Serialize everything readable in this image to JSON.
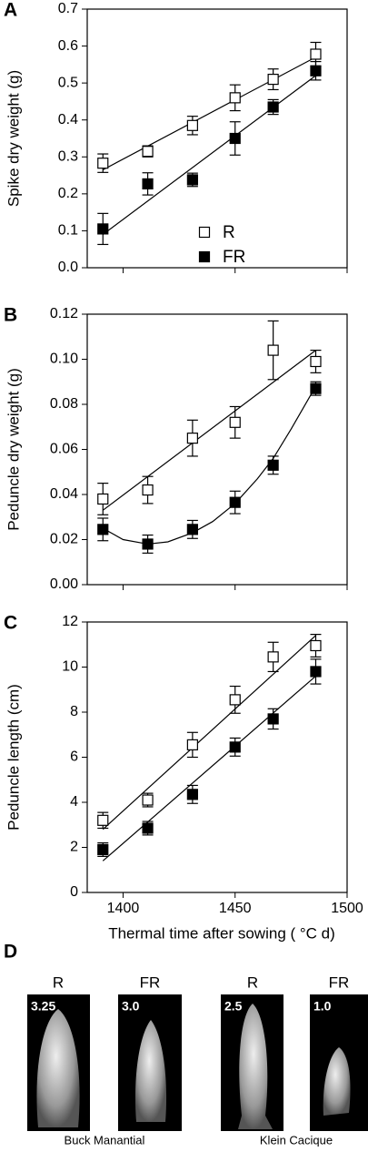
{
  "chart_data": [
    {
      "type": "scatter",
      "panel_label": "A",
      "ylabel": "Spike dry weight (g)",
      "xlim": [
        1384,
        1500
      ],
      "xticks": [
        1400,
        1450,
        1500
      ],
      "show_xtick_labels": false,
      "ylim": [
        0,
        0.7
      ],
      "yticks": [
        {
          "value": 0,
          "label": "0.0"
        },
        0.1,
        0.2,
        0.3,
        0.4,
        0.5,
        0.6,
        0.7
      ],
      "legend": "lower right",
      "x": [
        1391,
        1411,
        1431,
        1450,
        1467,
        1486
      ],
      "series": [
        {
          "name": "R",
          "marker": "open",
          "color": "#000000",
          "values": [
            0.283,
            0.315,
            0.385,
            0.46,
            0.51,
            0.578
          ],
          "errors": [
            0.025,
            0.015,
            0.025,
            0.035,
            0.028,
            0.032
          ],
          "fit": {
            "x": [
              1391,
              1486
            ],
            "values": [
              0.265,
              0.57
            ]
          }
        },
        {
          "name": "FR",
          "marker": "filled",
          "color": "#000000",
          "values": [
            0.105,
            0.227,
            0.238,
            0.35,
            0.435,
            0.533
          ],
          "errors": [
            0.042,
            0.03,
            0.018,
            0.045,
            0.02,
            0.025
          ],
          "fit": {
            "x": [
              1391,
              1486
            ],
            "values": [
              0.09,
              0.52
            ]
          }
        }
      ]
    },
    {
      "type": "scatter",
      "panel_label": "B",
      "ylabel": "Peduncle dry weight (g)",
      "xlim": [
        1384,
        1500
      ],
      "xticks": [
        1400,
        1450,
        1500
      ],
      "show_xtick_labels": false,
      "ylim": [
        0,
        0.12
      ],
      "yticks": [
        {
          "value": 0,
          "label": "0.00"
        },
        {
          "value": 0.02,
          "label": "0.02"
        },
        {
          "value": 0.04,
          "label": "0.04"
        },
        {
          "value": 0.06,
          "label": "0.06"
        },
        {
          "value": 0.08,
          "label": "0.08"
        },
        {
          "value": 0.1,
          "label": "0.10"
        },
        {
          "value": 0.12,
          "label": "0.12"
        }
      ],
      "x": [
        1391,
        1411,
        1431,
        1450,
        1467,
        1486
      ],
      "series": [
        {
          "marker": "open",
          "color": "#000000",
          "values": [
            0.038,
            0.042,
            0.065,
            0.072,
            0.104,
            0.099
          ],
          "errors": [
            0.007,
            0.006,
            0.008,
            0.007,
            0.013,
            0.005
          ],
          "fit": {
            "x": [
              1391,
              1486
            ],
            "values": [
              0.033,
              0.104
            ]
          }
        },
        {
          "marker": "filled",
          "color": "#000000",
          "values": [
            0.0245,
            0.018,
            0.0245,
            0.0365,
            0.053,
            0.087
          ],
          "errors": [
            0.005,
            0.004,
            0.004,
            0.005,
            0.004,
            0.003
          ],
          "fit": {
            "x": [
              1391,
              1400,
              1411,
              1420,
              1431,
              1440,
              1450,
              1460,
              1467,
              1475,
              1486
            ],
            "values": [
              0.025,
              0.02,
              0.018,
              0.019,
              0.023,
              0.028,
              0.036,
              0.047,
              0.056,
              0.069,
              0.088
            ]
          }
        }
      ]
    },
    {
      "type": "scatter",
      "panel_label": "C",
      "ylabel": "Peduncle length (cm)",
      "xlabel": "Thermal time after sowing ( °C d)",
      "xlim": [
        1384,
        1500
      ],
      "xticks": [
        1400,
        1450,
        1500
      ],
      "show_xtick_labels": true,
      "ylim": [
        0,
        12
      ],
      "yticks": [
        0,
        2,
        4,
        6,
        8,
        10,
        12
      ],
      "x": [
        1391,
        1411,
        1431,
        1450,
        1467,
        1486
      ],
      "series": [
        {
          "marker": "open",
          "color": "#000000",
          "values": [
            3.2,
            4.1,
            6.55,
            8.55,
            10.45,
            10.95
          ],
          "errors": [
            0.35,
            0.3,
            0.55,
            0.6,
            0.65,
            0.5
          ],
          "fit": {
            "x": [
              1391,
              1486
            ],
            "values": [
              2.8,
              11.4
            ]
          }
        },
        {
          "marker": "filled",
          "color": "#000000",
          "values": [
            1.9,
            2.85,
            4.35,
            6.45,
            7.7,
            9.8
          ],
          "errors": [
            0.3,
            0.3,
            0.4,
            0.4,
            0.45,
            0.55
          ],
          "fit": {
            "x": [
              1391,
              1486
            ],
            "values": [
              1.4,
              9.6
            ]
          }
        }
      ]
    }
  ],
  "panel_d": {
    "panel_label": "D",
    "images": [
      {
        "label": "R",
        "score": "3.25"
      },
      {
        "label": "FR",
        "score": "3.0"
      },
      {
        "label": "R",
        "score": "2.5"
      },
      {
        "label": "FR",
        "score": "1.0"
      }
    ],
    "cultivars": [
      "Buck Manantial",
      "Klein Cacique"
    ]
  }
}
